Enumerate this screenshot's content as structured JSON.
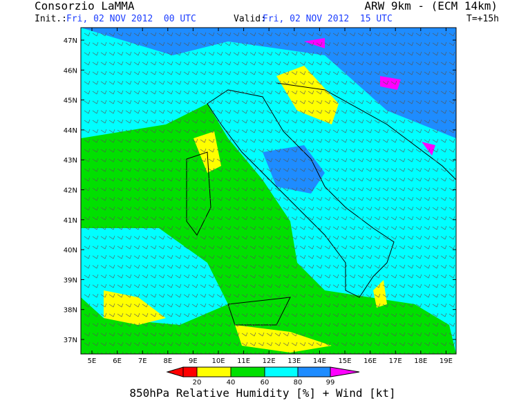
{
  "header": {
    "left_title": "Consorzio LaMMA",
    "init_label": "Init.:",
    "init_value": "Fri, 02 NOV 2012  00 UTC",
    "right_title": "ARW 9km - (ECM 14km)",
    "valid_label": "Valid:",
    "valid_value": "Fri, 02 NOV 2012  15 UTC",
    "forecast_time": "T=+15h"
  },
  "map": {
    "lat_labels": [
      "47N",
      "46N",
      "45N",
      "44N",
      "43N",
      "42N",
      "41N",
      "40N",
      "39N",
      "38N",
      "37N"
    ],
    "lon_labels": [
      "5E",
      "6E",
      "7E",
      "8E",
      "9E",
      "10E",
      "11E",
      "12E",
      "13E",
      "14E",
      "15E",
      "16E",
      "17E",
      "18E",
      "19E"
    ]
  },
  "colorbar": {
    "labels": [
      "20",
      "40",
      "60",
      "80",
      "99"
    ]
  },
  "caption": "850hPa Relative Humidity [%] + Wind [kt]"
}
